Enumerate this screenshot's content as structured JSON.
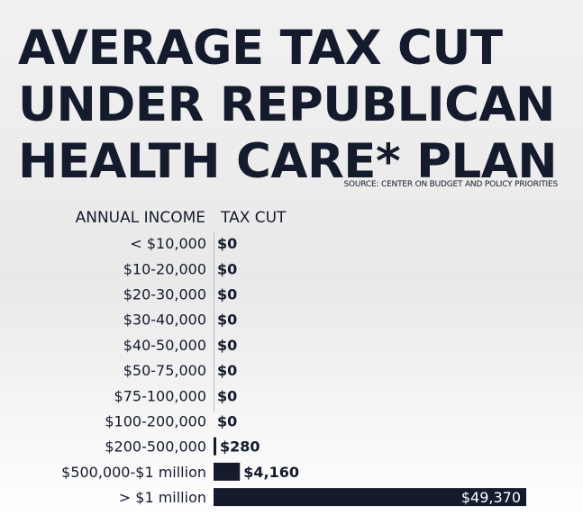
{
  "title_lines": [
    "AVERAGE TAX CUT",
    "UNDER REPUBLICAN",
    "HEALTH CARE* PLAN"
  ],
  "source": "SOURCE: CENTER ON BUDGET AND POLICY PRIORITIES",
  "column_headers": {
    "income": "ANNUAL INCOME",
    "tax_cut": "TAX CUT"
  },
  "colors": {
    "bar": "#141b2d",
    "text": "#141b2d",
    "inside_label": "#ffffff"
  },
  "chart_data": {
    "type": "bar",
    "orientation": "horizontal",
    "categories": [
      "< $10,000",
      "$10-20,000",
      "$20-30,000",
      "$30-40,000",
      "$40-50,000",
      "$50-75,000",
      "$75-100,000",
      "$100-200,000",
      "$200-500,000",
      "$500,000-$1 million",
      "> $1 million"
    ],
    "values": [
      0,
      0,
      0,
      0,
      0,
      0,
      0,
      0,
      280,
      4160,
      49370
    ],
    "value_labels": [
      "$0",
      "$0",
      "$0",
      "$0",
      "$0",
      "$0",
      "$0",
      "$0",
      "$280",
      "$4,160",
      "$49,370"
    ],
    "xlim": [
      0,
      49370
    ],
    "grid": false,
    "legend": "none"
  }
}
